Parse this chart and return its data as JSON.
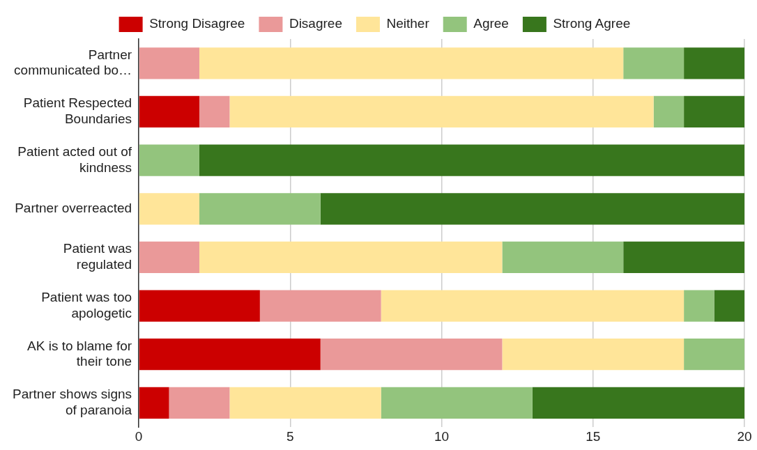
{
  "chart_data": {
    "type": "bar",
    "orientation": "horizontal",
    "stacked": true,
    "categories": [
      "Partner communicated bo…",
      "Patient Respected Boundaries",
      "Patient acted out of kindness",
      "Partner overreacted",
      "Patient was regulated",
      "Patient was too apologetic",
      "AK is to blame for their tone",
      "Partner shows signs of paranoia"
    ],
    "series": [
      {
        "name": "Strong Disagree",
        "color": "#cc0000",
        "values": [
          0,
          2,
          0,
          0,
          0,
          4,
          6,
          1
        ]
      },
      {
        "name": "Disagree",
        "color": "#ea9999",
        "values": [
          2,
          1,
          0,
          0,
          2,
          4,
          6,
          2
        ]
      },
      {
        "name": "Neither",
        "color": "#ffe599",
        "values": [
          14,
          14,
          0,
          2,
          10,
          10,
          6,
          5
        ]
      },
      {
        "name": "Agree",
        "color": "#93c47d",
        "values": [
          2,
          1,
          2,
          4,
          4,
          1,
          2,
          5
        ]
      },
      {
        "name": "Strong Agree",
        "color": "#38761d",
        "values": [
          2,
          2,
          18,
          14,
          4,
          1,
          0,
          7
        ]
      }
    ],
    "xlim": [
      0,
      20
    ],
    "xticks": [
      0,
      5,
      10,
      15,
      20
    ],
    "grid": "x",
    "legend": "top"
  }
}
